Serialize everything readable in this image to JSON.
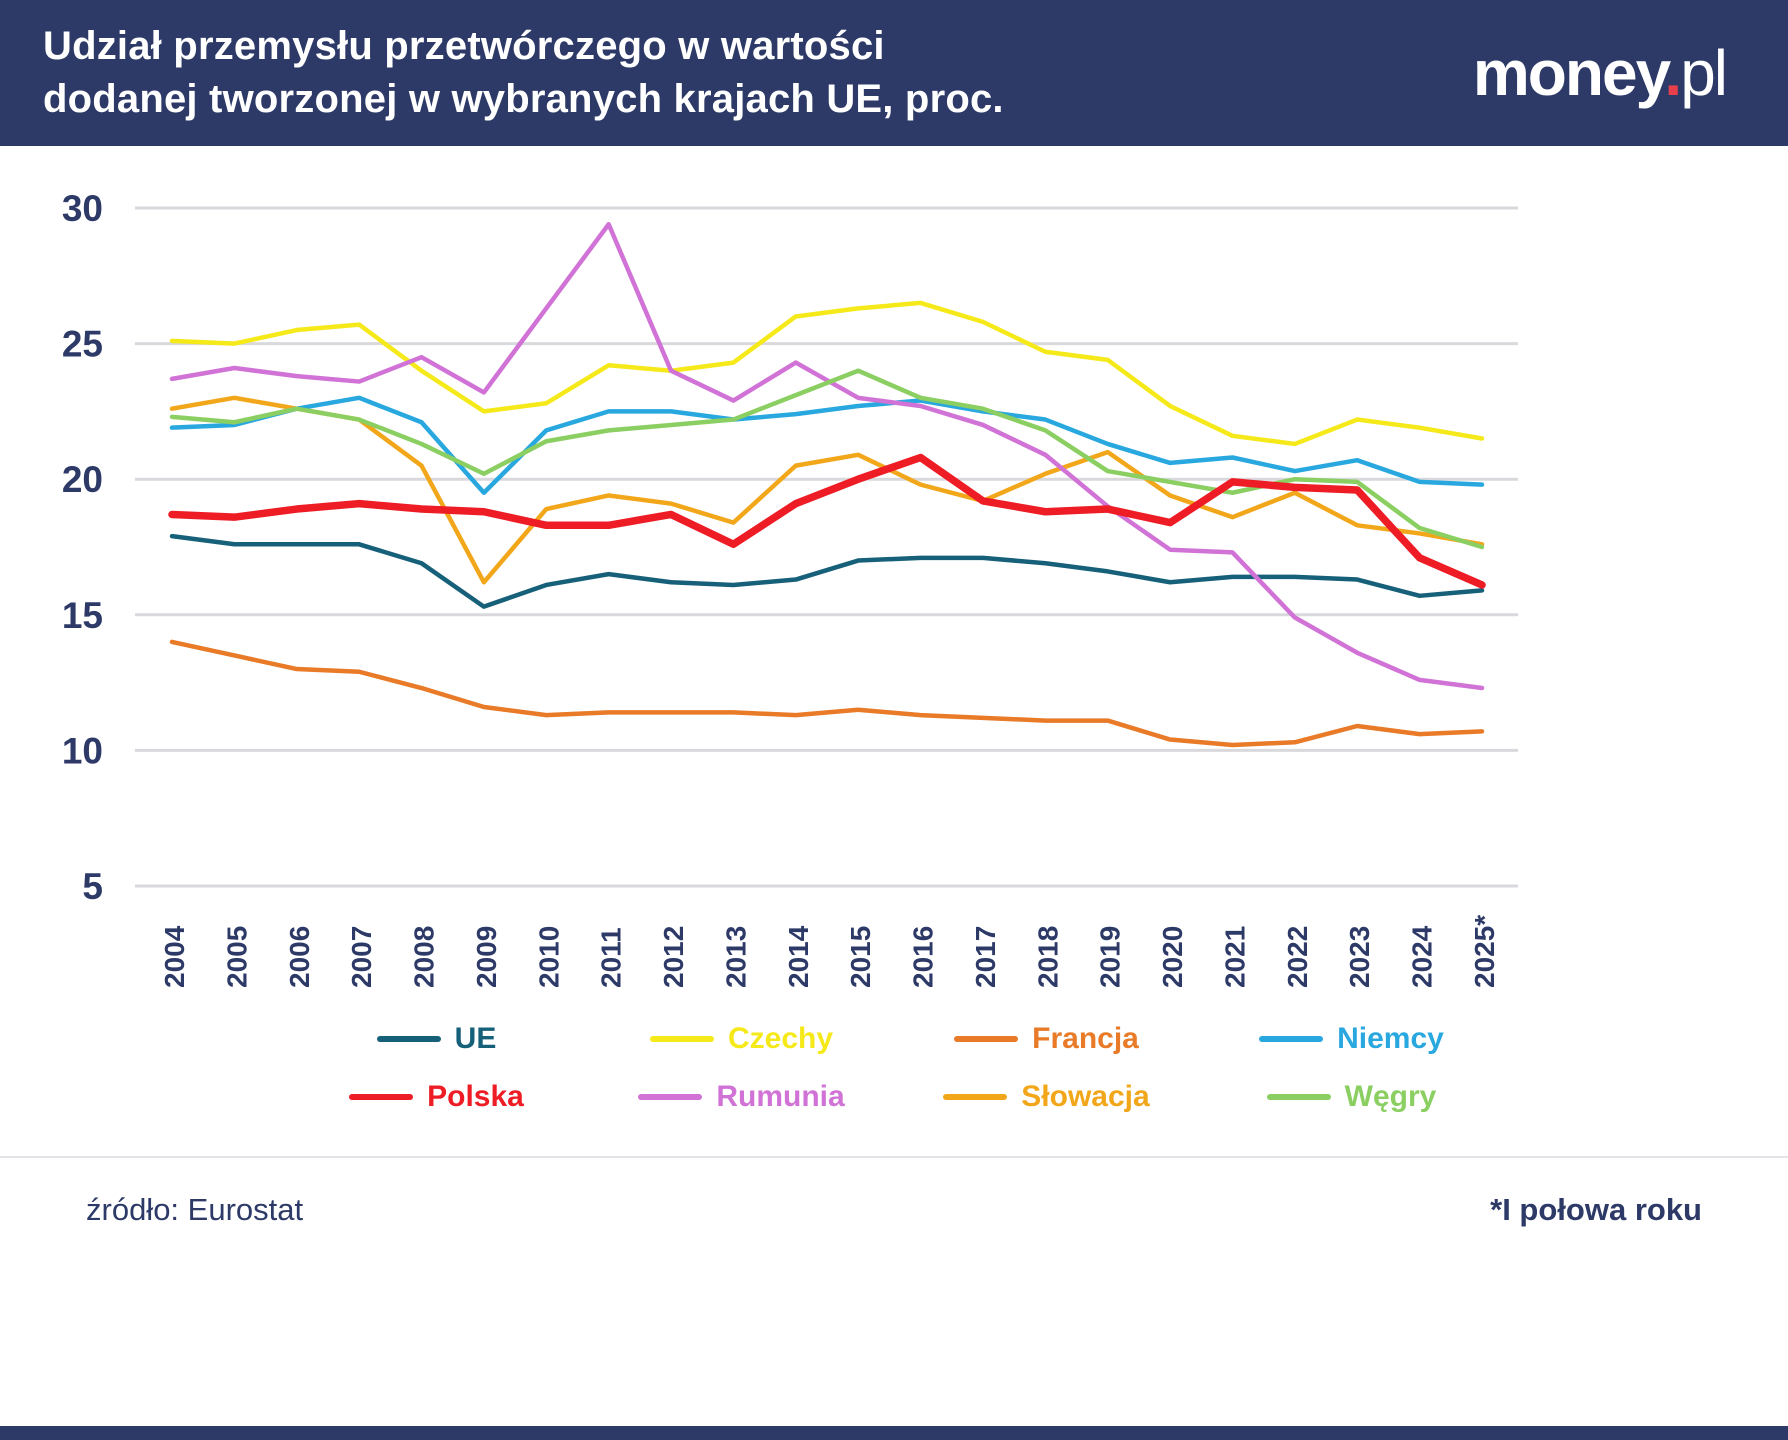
{
  "header": {
    "title_line1": "Udział przemysłu przetwórczego w wartości",
    "title_line2": "dodanej tworzonej w wybranych krajach UE, proc.",
    "logo": {
      "name": "money",
      "dot": ".",
      "tld": "pl"
    }
  },
  "chart_data": {
    "type": "line",
    "title": "Udział przemysłu przetwórczego w wartości dodanej tworzonej w wybranych krajach UE, proc.",
    "x": [
      "2004",
      "2005",
      "2006",
      "2007",
      "2008",
      "2009",
      "2010",
      "2011",
      "2012",
      "2013",
      "2014",
      "2015",
      "2016",
      "2017",
      "2018",
      "2019",
      "2020",
      "2021",
      "2022",
      "2023",
      "2024",
      "2025*"
    ],
    "ylim": [
      5,
      30
    ],
    "yticks": [
      30,
      25,
      20,
      15,
      10,
      5
    ],
    "grid": true,
    "legend_position": "bottom",
    "legend_rows": [
      [
        "UE",
        "Czechy",
        "Francja",
        "Niemcy"
      ],
      [
        "Polska",
        "Rumunia",
        "Słowacja",
        "Węgry"
      ]
    ],
    "series": [
      {
        "name": "UE",
        "color": "#16607a",
        "width": 4.5,
        "z": 1,
        "values": [
          17.9,
          17.6,
          17.6,
          17.6,
          16.9,
          15.3,
          16.1,
          16.5,
          16.2,
          16.1,
          16.3,
          17.0,
          17.1,
          17.1,
          16.9,
          16.6,
          16.2,
          16.4,
          16.4,
          16.3,
          15.7,
          15.9
        ]
      },
      {
        "name": "Czechy",
        "color": "#f5e91a",
        "width": 4.5,
        "z": 5,
        "values": [
          25.1,
          25.0,
          25.5,
          25.7,
          24.0,
          22.5,
          22.8,
          24.2,
          24.0,
          24.3,
          26.0,
          26.3,
          26.5,
          25.8,
          24.7,
          24.4,
          22.7,
          21.6,
          21.3,
          22.2,
          21.9,
          21.5
        ]
      },
      {
        "name": "Francja",
        "color": "#e87a28",
        "width": 4.5,
        "z": 2,
        "values": [
          14.0,
          13.5,
          13.0,
          12.9,
          12.3,
          11.6,
          11.3,
          11.4,
          11.4,
          11.4,
          11.3,
          11.5,
          11.3,
          11.2,
          11.1,
          11.1,
          10.4,
          10.2,
          10.3,
          10.9,
          10.6,
          10.7
        ]
      },
      {
        "name": "Niemcy",
        "color": "#29a8df",
        "width": 4.5,
        "z": 4,
        "values": [
          21.9,
          22.0,
          22.6,
          23.0,
          22.1,
          19.5,
          21.8,
          22.5,
          22.5,
          22.2,
          22.4,
          22.7,
          22.9,
          22.5,
          22.2,
          21.3,
          20.6,
          20.8,
          20.3,
          20.7,
          19.9,
          19.8
        ]
      },
      {
        "name": "Polska",
        "color": "#ee1c25",
        "width": 7.5,
        "z": 8,
        "values": [
          18.7,
          18.6,
          18.9,
          19.1,
          18.9,
          18.8,
          18.3,
          18.3,
          18.7,
          17.6,
          19.1,
          20.0,
          20.8,
          19.2,
          18.8,
          18.9,
          18.4,
          19.9,
          19.7,
          19.6,
          17.1,
          16.1
        ]
      },
      {
        "name": "Rumunia",
        "color": "#d173d6",
        "width": 4.5,
        "z": 6,
        "values": [
          23.7,
          24.1,
          23.8,
          23.6,
          24.5,
          23.2,
          26.3,
          29.4,
          24.0,
          22.9,
          24.3,
          23.0,
          22.7,
          22.0,
          20.9,
          19.0,
          17.4,
          17.3,
          14.9,
          13.6,
          12.6,
          12.3
        ]
      },
      {
        "name": "Słowacja",
        "color": "#f2a71b",
        "width": 4.5,
        "z": 3,
        "values": [
          22.6,
          23.0,
          22.6,
          22.2,
          20.5,
          16.2,
          18.9,
          19.4,
          19.1,
          18.4,
          20.5,
          20.9,
          19.8,
          19.2,
          20.2,
          21.0,
          19.4,
          18.6,
          19.5,
          18.3,
          18.0,
          17.6
        ]
      },
      {
        "name": "Węgry",
        "color": "#8bcf63",
        "width": 4.5,
        "z": 7,
        "values": [
          22.3,
          22.1,
          22.6,
          22.2,
          21.3,
          20.2,
          21.4,
          21.8,
          22.0,
          22.2,
          23.1,
          24.0,
          23.0,
          22.6,
          21.8,
          20.3,
          19.9,
          19.5,
          20.0,
          19.9,
          18.2,
          17.5
        ]
      }
    ]
  },
  "footer": {
    "source": "źródło: Eurostat",
    "note": "*I połowa roku"
  },
  "colors": {
    "header_bg": "#2d3a67",
    "axis_text": "#2d3a67",
    "grid": "#d9d9dd",
    "logo_dot": "#e8404a"
  }
}
